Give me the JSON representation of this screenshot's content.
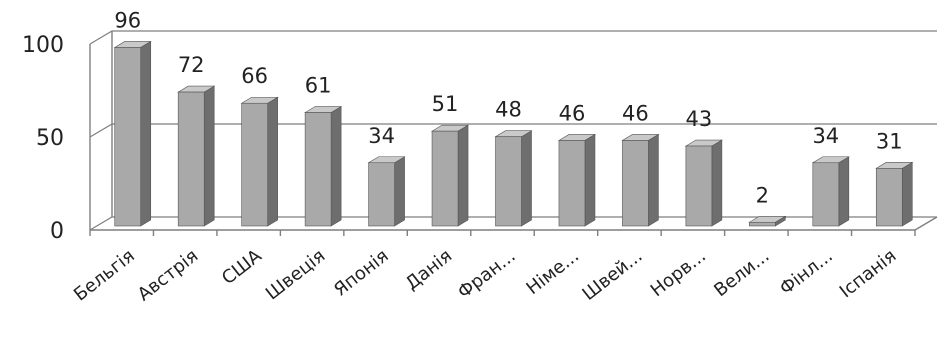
{
  "chart_data": {
    "type": "bar",
    "style": "3d-column",
    "categories": [
      "Бельгія",
      "Австрія",
      "США",
      "Швеція",
      "Японія",
      "Данія",
      "Фран...",
      "Німе...",
      "Швей...",
      "Норв...",
      "Вели...",
      "Фінл...",
      "Іспанія"
    ],
    "values": [
      96,
      72,
      66,
      61,
      34,
      51,
      48,
      46,
      46,
      43,
      2,
      34,
      31
    ],
    "ylim": [
      0,
      100
    ],
    "yticks": [
      0,
      50,
      100
    ],
    "grid": true,
    "legend": "none",
    "data_labels": true,
    "colors": {
      "bar_front": "#a9a9a9",
      "bar_side": "#6e6e6e",
      "bar_top": "#c9c9c9",
      "gridline": "#7f7f7f"
    }
  }
}
